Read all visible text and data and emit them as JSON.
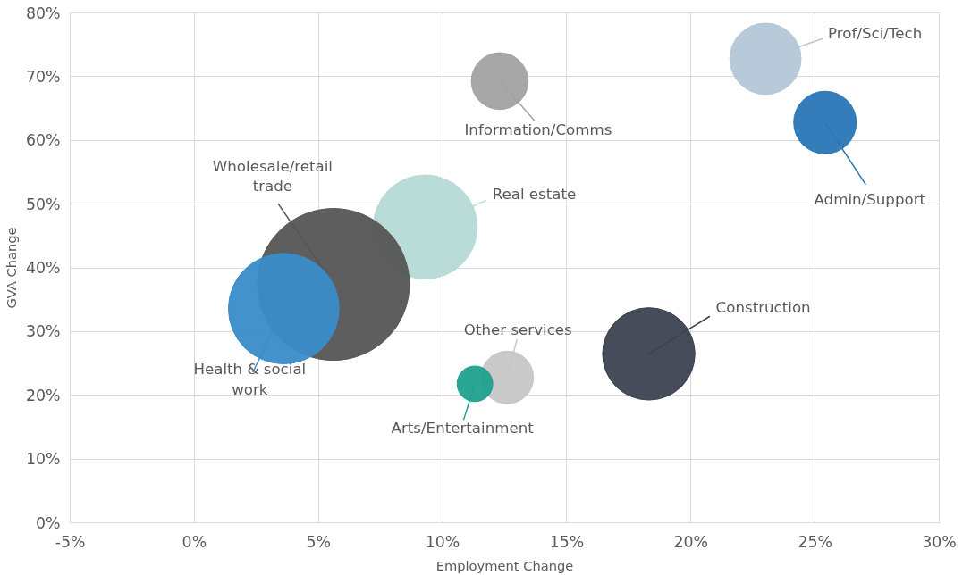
{
  "chart_data": {
    "type": "bubble",
    "xlabel": "Employment Change",
    "ylabel": "GVA Change",
    "xlim": [
      -5,
      30
    ],
    "ylim": [
      0,
      80
    ],
    "xticks": [
      {
        "value": -5,
        "label": "-5%"
      },
      {
        "value": 0,
        "label": "0%"
      },
      {
        "value": 5,
        "label": "5%"
      },
      {
        "value": 10,
        "label": "10%"
      },
      {
        "value": 15,
        "label": "15%"
      },
      {
        "value": 20,
        "label": "20%"
      },
      {
        "value": 25,
        "label": "25%"
      },
      {
        "value": 30,
        "label": "30%"
      }
    ],
    "yticks": [
      {
        "value": 0,
        "label": "0%"
      },
      {
        "value": 10,
        "label": "10%"
      },
      {
        "value": 20,
        "label": "20%"
      },
      {
        "value": 30,
        "label": "30%"
      },
      {
        "value": 40,
        "label": "40%"
      },
      {
        "value": 50,
        "label": "50%"
      },
      {
        "value": 60,
        "label": "60%"
      },
      {
        "value": 70,
        "label": "70%"
      },
      {
        "value": 80,
        "label": "80%"
      }
    ],
    "grid": true,
    "series": [
      {
        "name": "Prof/Sci/Tech",
        "color": "#b4c6d8",
        "x": [
          23.0
        ],
        "values": [
          72.8
        ],
        "sizes": [
          0.22
        ]
      },
      {
        "name": "Admin/Support",
        "color": "#2a76b6",
        "x": [
          25.4
        ],
        "values": [
          62.8
        ],
        "sizes": [
          0.17
        ]
      },
      {
        "name": "Information/Comms",
        "color": "#a2a2a2",
        "x": [
          12.3
        ],
        "values": [
          69.3
        ],
        "sizes": [
          0.14
        ]
      },
      {
        "name": "Real estate",
        "color": "#b6dad6",
        "x": [
          9.3
        ],
        "values": [
          46.4
        ],
        "sizes": [
          0.47
        ]
      },
      {
        "name": "Wholesale/retail trade",
        "color": "#555555",
        "x": [
          5.6
        ],
        "values": [
          37.4
        ],
        "sizes": [
          1
        ]
      },
      {
        "name": "Health & social work",
        "color": "#3a8cc8",
        "x": [
          3.6
        ],
        "values": [
          33.6
        ],
        "sizes": [
          0.53
        ]
      },
      {
        "name": "Construction",
        "color": "#3c4250",
        "x": [
          18.3
        ],
        "values": [
          26.5
        ],
        "sizes": [
          0.37
        ]
      },
      {
        "name": "Other services",
        "color": "#c6c6c6",
        "x": [
          12.6
        ],
        "values": [
          22.8
        ],
        "sizes": [
          0.12
        ]
      },
      {
        "name": "Arts/Entertainment",
        "color": "#20a08e",
        "x": [
          11.3
        ],
        "values": [
          21.8
        ],
        "sizes": [
          0.055
        ]
      }
    ]
  }
}
